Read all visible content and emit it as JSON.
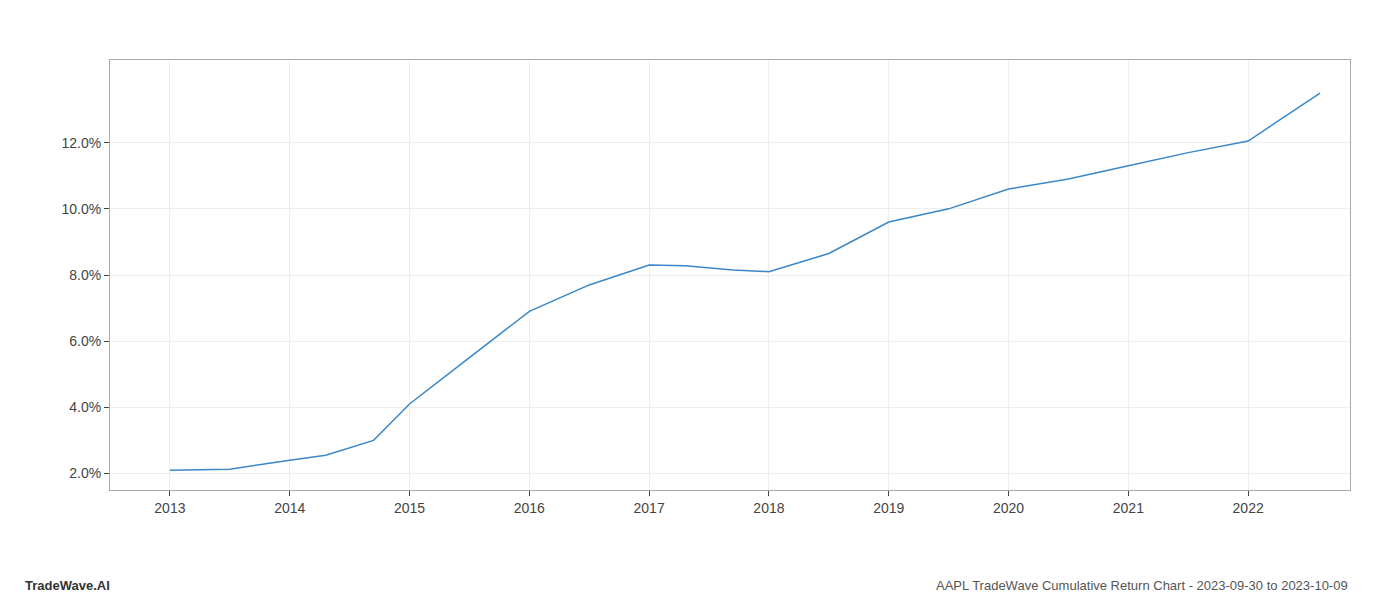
{
  "chart_data": {
    "type": "line",
    "x": [
      2013,
      2013.5,
      2014,
      2014.3,
      2014.7,
      2015,
      2015.5,
      2016,
      2016.5,
      2017,
      2017.3,
      2017.7,
      2018,
      2018.5,
      2019,
      2019.5,
      2020,
      2020.5,
      2021,
      2021.5,
      2022,
      2022.6
    ],
    "values": [
      2.1,
      2.13,
      2.4,
      2.55,
      3.0,
      4.1,
      5.5,
      6.9,
      7.7,
      8.3,
      8.28,
      8.15,
      8.1,
      8.65,
      9.6,
      10.0,
      10.6,
      10.9,
      11.3,
      11.7,
      12.05,
      13.5
    ],
    "color": "#3a87c8",
    "xlim": [
      2012.5,
      2022.85
    ],
    "xticks": [
      2013,
      2014,
      2015,
      2016,
      2017,
      2018,
      2019,
      2020,
      2021,
      2022
    ],
    "ylim": [
      1.5,
      14.5
    ],
    "yticks": [
      {
        "value": 2.0,
        "label": "2.0%"
      },
      {
        "value": 4.0,
        "label": "4.0%"
      },
      {
        "value": 6.0,
        "label": "6.0%"
      },
      {
        "value": 8.0,
        "label": "8.0%"
      },
      {
        "value": 10.0,
        "label": "10.0%"
      },
      {
        "value": 12.0,
        "label": "12.0%"
      }
    ],
    "grid": true,
    "annotations": [
      {
        "text": "TradeWave.AI",
        "color": "#333333"
      },
      {
        "text": "AAPL TradeWave Cumulative Return Chart - 2023-09-30 to 2023-10-09",
        "color": "#555555"
      }
    ]
  }
}
